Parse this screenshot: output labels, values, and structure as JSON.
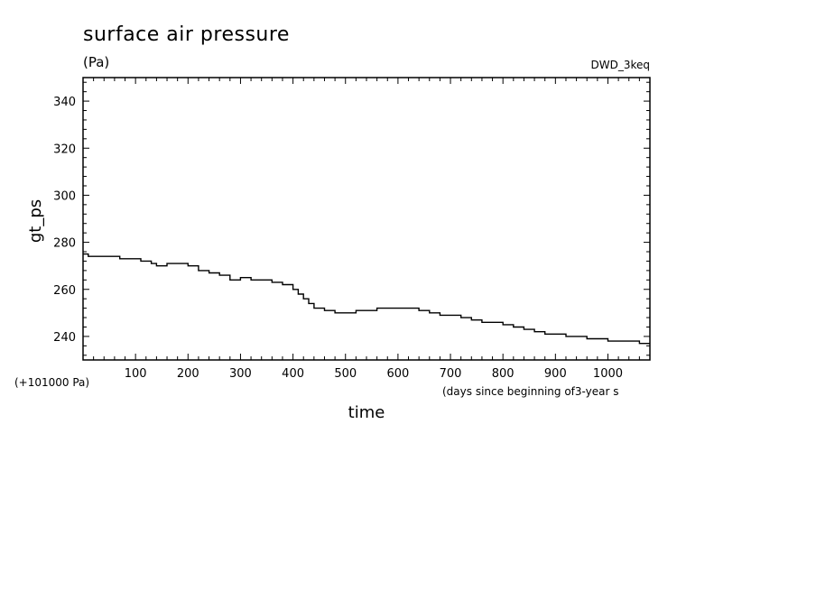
{
  "chart_data": {
    "type": "line",
    "title": "surface air pressure",
    "units": "(Pa)",
    "dataset": "DWD_3keq",
    "ylabel": "gt_ps",
    "xlabel": "time",
    "x_units": "(days since beginning of3-year s",
    "y_offset": "(+101000 Pa)",
    "xlim": [
      0,
      1080
    ],
    "ylim": [
      230,
      350
    ],
    "x_ticks": [
      100,
      200,
      300,
      400,
      500,
      600,
      700,
      800,
      900,
      1000
    ],
    "y_ticks": [
      240,
      260,
      280,
      300,
      320,
      340
    ],
    "x_tick_labels": [
      "100",
      "200",
      "300",
      "400",
      "500",
      "600",
      "700",
      "800",
      "900",
      "1000"
    ],
    "y_tick_labels": [
      "240",
      "260",
      "280",
      "300",
      "320",
      "340"
    ],
    "series": [
      {
        "x": [
          0,
          10,
          30,
          50,
          70,
          90,
          110,
          130,
          140,
          150,
          160,
          180,
          200,
          220,
          240,
          260,
          280,
          300,
          320,
          340,
          360,
          380,
          400,
          410,
          420,
          430,
          440,
          460,
          480,
          500,
          520,
          540,
          560,
          580,
          600,
          620,
          640,
          660,
          680,
          700,
          720,
          740,
          760,
          780,
          800,
          820,
          840,
          860,
          880,
          900,
          920,
          940,
          960,
          980,
          1000,
          1020,
          1040,
          1060,
          1080
        ],
        "y": [
          275,
          274,
          274,
          274,
          273,
          273,
          272,
          271,
          270,
          270,
          271,
          271,
          270,
          268,
          267,
          266,
          264,
          265,
          264,
          264,
          263,
          262,
          260,
          258,
          256,
          254,
          252,
          251,
          250,
          250,
          251,
          251,
          252,
          252,
          252,
          252,
          251,
          250,
          249,
          249,
          248,
          247,
          246,
          246,
          245,
          244,
          243,
          242,
          241,
          241,
          240,
          240,
          239,
          239,
          238,
          238,
          238,
          237,
          237
        ]
      }
    ]
  }
}
